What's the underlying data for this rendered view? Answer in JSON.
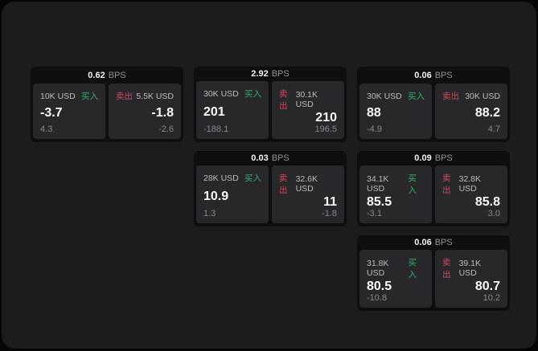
{
  "labels": {
    "bps": "BPS",
    "buy": "买入",
    "sell": "卖出"
  },
  "colors": {
    "buy": "#2fae6e",
    "sell": "#d6455f",
    "panel_bg": "#1c1c1d",
    "card_bg": "#0f0f10",
    "pane_bg": "#28282a"
  },
  "cards": [
    {
      "bps": "0.62",
      "buy": {
        "size": "10K USD",
        "value": "-3.7",
        "delta": "4.3"
      },
      "sell": {
        "size": "5.5K USD",
        "value": "-1.8",
        "delta": "-2.6"
      }
    },
    {
      "bps": "2.92",
      "buy": {
        "size": "30K USD",
        "value": "201",
        "delta": "-188.1"
      },
      "sell": {
        "size": "30.1K USD",
        "value": "210",
        "delta": "196.5"
      }
    },
    {
      "bps": "0.06",
      "buy": {
        "size": "30K USD",
        "value": "88",
        "delta": "-4.9"
      },
      "sell": {
        "size": "30K USD",
        "value": "88.2",
        "delta": "4.7"
      }
    },
    {
      "bps": "0.03",
      "buy": {
        "size": "28K USD",
        "value": "10.9",
        "delta": "1.3"
      },
      "sell": {
        "size": "32.6K USD",
        "value": "11",
        "delta": "-1.8"
      }
    },
    {
      "bps": "0.09",
      "buy": {
        "size": "34.1K USD",
        "value": "85.5",
        "delta": "-3.1"
      },
      "sell": {
        "size": "32.8K USD",
        "value": "85.8",
        "delta": "3.0"
      }
    },
    {
      "bps": "0.06",
      "buy": {
        "size": "31.8K USD",
        "value": "80.5",
        "delta": "-10.8"
      },
      "sell": {
        "size": "39.1K USD",
        "value": "80.7",
        "delta": "10.2"
      }
    }
  ]
}
